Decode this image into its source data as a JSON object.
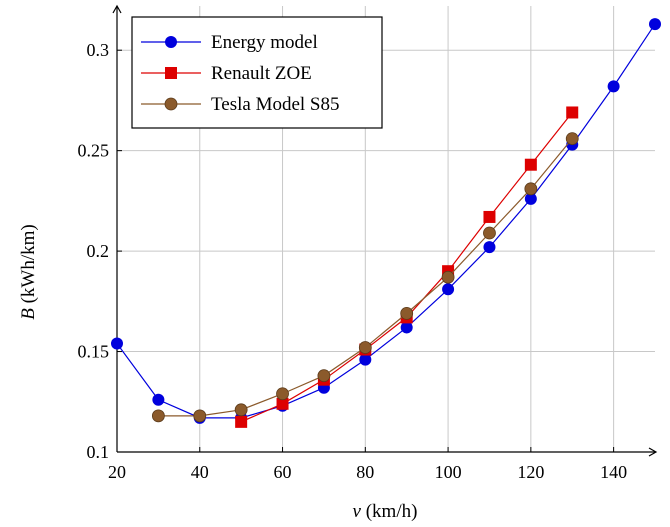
{
  "chart_data": {
    "type": "line",
    "x": [
      20,
      30,
      40,
      50,
      60,
      70,
      80,
      90,
      100,
      110,
      120,
      130,
      140,
      150
    ],
    "xlabel_var": "v",
    "xlabel_unit": "(km/h)",
    "ylabel_var": "B",
    "ylabel_unit": "(kWh/km)",
    "xlim": [
      20,
      150
    ],
    "ylim": [
      0.1,
      0.322
    ],
    "x_ticks": [
      20,
      40,
      60,
      80,
      100,
      120,
      140
    ],
    "y_ticks": [
      0.1,
      0.15,
      0.2,
      0.25,
      0.3
    ],
    "x_tick_labels": [
      "20",
      "40",
      "60",
      "80",
      "100",
      "120",
      "140"
    ],
    "y_tick_labels": [
      "0.1",
      "0.15",
      "0.2",
      "0.25",
      "0.3"
    ],
    "grid": true,
    "legend_position": "top-left",
    "series": [
      {
        "name": "Energy model",
        "color": "#0000dd",
        "marker": "circle",
        "x": [
          20,
          30,
          40,
          50,
          60,
          70,
          80,
          90,
          100,
          110,
          120,
          130,
          140,
          150
        ],
        "values": [
          0.154,
          0.126,
          0.117,
          0.117,
          0.123,
          0.132,
          0.146,
          0.162,
          0.181,
          0.202,
          0.226,
          0.253,
          0.282,
          0.313
        ]
      },
      {
        "name": "Renault ZOE",
        "color": "#dd0000",
        "marker": "square",
        "x": [
          50,
          60,
          70,
          80,
          90,
          100,
          110,
          120,
          130
        ],
        "values": [
          0.115,
          0.124,
          0.136,
          0.151,
          0.167,
          0.19,
          0.217,
          0.243,
          0.269
        ]
      },
      {
        "name": "Tesla Model S85",
        "color": "#8b5a2b",
        "marker": "circle",
        "x": [
          30,
          40,
          50,
          60,
          70,
          80,
          90,
          100,
          110,
          120,
          130
        ],
        "values": [
          0.118,
          0.118,
          0.121,
          0.129,
          0.138,
          0.152,
          0.169,
          0.187,
          0.209,
          0.231,
          0.256
        ]
      }
    ]
  }
}
